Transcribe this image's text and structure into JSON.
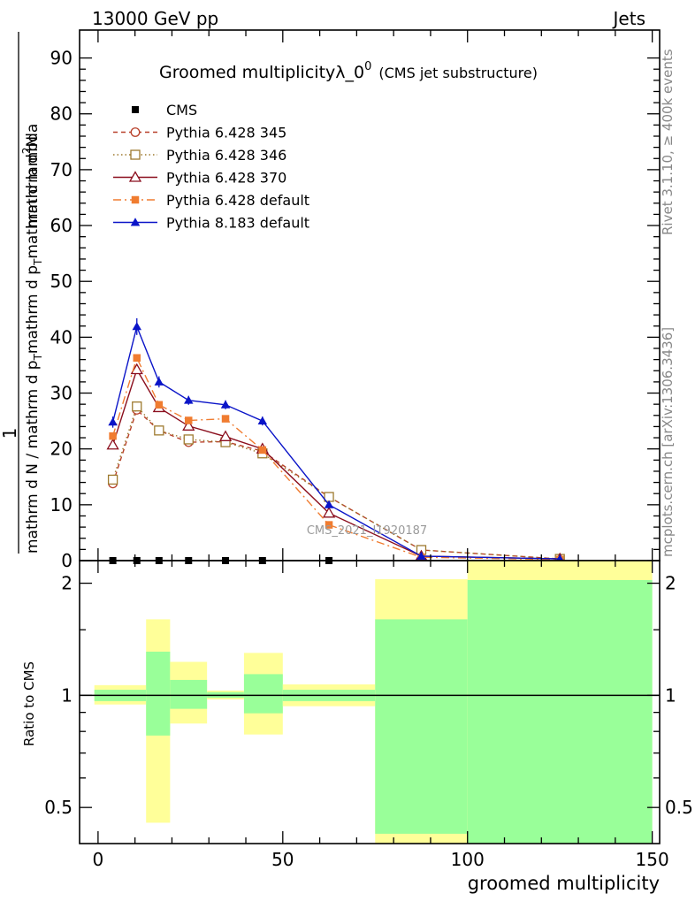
{
  "header": {
    "left": "13000 GeV pp",
    "right": "Jets"
  },
  "side_labels": {
    "rivet": "Rivet 3.1.10, ≥ 400k events",
    "mcplots": "mcplots.cern.ch [arXiv:1306.3436]"
  },
  "chart_data": [
    {
      "type": "line",
      "title": "Groomed multiplicityλ_0",
      "title_superscript": "0",
      "subtitle": "(CMS jet substructure)",
      "ylabel_parts": [
        "1",
        "mathrm d N / mathrm d p",
        "T",
        "mathrm d p",
        "T",
        "mathrm d lambda",
        "mathrm d",
        "2",
        "N"
      ],
      "watermark": "CMS_2021_I1920187",
      "xlim": [
        -5,
        152
      ],
      "ylim": [
        0,
        95
      ],
      "yticks": [
        0,
        10,
        20,
        30,
        40,
        50,
        60,
        70,
        80,
        90
      ],
      "x": [
        4,
        10.5,
        16.5,
        24.5,
        34.5,
        44.5,
        62.5,
        87.5,
        125
      ],
      "cms_points": [
        4,
        10.5,
        16.5,
        24.5,
        34.5,
        44.5,
        62.5
      ],
      "legend": {
        "position": "top-left",
        "cms_label": "CMS"
      },
      "series": [
        {
          "name": "Pythia 6.428 345",
          "color": "#b8402a",
          "dash": "5,4",
          "marker": "circle-open",
          "values": [
            13.8,
            27.0,
            23.3,
            21.2,
            21.3,
            19.6,
            11.4,
            1.9,
            0.3
          ]
        },
        {
          "name": "Pythia 6.428 346",
          "color": "#9e7a2f",
          "dash": "1.5,3",
          "marker": "square-open",
          "values": [
            14.5,
            27.6,
            23.3,
            21.7,
            21.2,
            19.2,
            11.4,
            1.9,
            0.3
          ]
        },
        {
          "name": "Pythia 6.428 370",
          "color": "#8b0f1e",
          "dash": "",
          "marker": "triangle-open",
          "values": [
            20.7,
            34.2,
            27.4,
            24.1,
            22.2,
            20.0,
            8.5,
            0.8,
            0.3
          ]
        },
        {
          "name": "Pythia 6.428 default",
          "color": "#f07c30",
          "dash": "9,4,2,4",
          "marker": "square-filled",
          "values": [
            22.3,
            36.3,
            27.9,
            25.1,
            25.4,
            19.8,
            6.4,
            0.6,
            0.2
          ]
        },
        {
          "name": "Pythia 8.183 default",
          "color": "#0a14c8",
          "dash": "",
          "marker": "triangle-filled",
          "values": [
            24.8,
            41.9,
            32.0,
            28.7,
            27.9,
            25.0,
            10.0,
            0.8,
            0.3
          ],
          "errors": [
            1.0,
            1.5,
            1.0,
            0.8,
            0.8,
            0.8,
            0.4,
            0.1,
            0.05
          ]
        }
      ]
    },
    {
      "type": "band",
      "ylabel": "Ratio to CMS",
      "xlabel": "groomed multiplicity",
      "xlim": [
        -5,
        152
      ],
      "ylim": [
        0.4,
        2.3
      ],
      "yscale": "log",
      "yticks": [
        0.5,
        1,
        2
      ],
      "ytick_labels": [
        "0.5",
        "1",
        "2"
      ],
      "xticks": [
        0,
        50,
        100,
        150
      ],
      "xtick_labels": [
        "0",
        "50",
        "100",
        "150"
      ],
      "reference": 1,
      "colors": {
        "outer": "#ffff99",
        "inner": "#99ff99",
        "line": "#000000"
      },
      "bins": [
        {
          "lo": -1,
          "hi": 13,
          "outer": [
            0.945,
            1.065
          ],
          "inner": [
            0.965,
            1.035
          ]
        },
        {
          "lo": 13,
          "hi": 19.5,
          "outer": [
            0.455,
            1.6
          ],
          "inner": [
            0.78,
            1.31
          ]
        },
        {
          "lo": 19.5,
          "hi": 29.5,
          "outer": [
            0.84,
            1.23
          ],
          "inner": [
            0.92,
            1.1
          ]
        },
        {
          "lo": 29.5,
          "hi": 39.5,
          "outer": [
            0.975,
            1.03
          ],
          "inner": [
            0.985,
            1.02
          ]
        },
        {
          "lo": 39.5,
          "hi": 50,
          "outer": [
            0.785,
            1.3
          ],
          "inner": [
            0.895,
            1.14
          ]
        },
        {
          "lo": 50,
          "hi": 75,
          "outer": [
            0.935,
            1.07
          ],
          "inner": [
            0.965,
            1.035
          ]
        },
        {
          "lo": 75,
          "hi": 100,
          "outer": [
            0.4,
            2.05
          ],
          "inner": [
            0.425,
            1.6
          ]
        },
        {
          "lo": 100,
          "hi": 150,
          "outer": [
            0.4,
            2.3
          ],
          "inner": [
            0.4,
            2.04
          ]
        }
      ]
    }
  ]
}
